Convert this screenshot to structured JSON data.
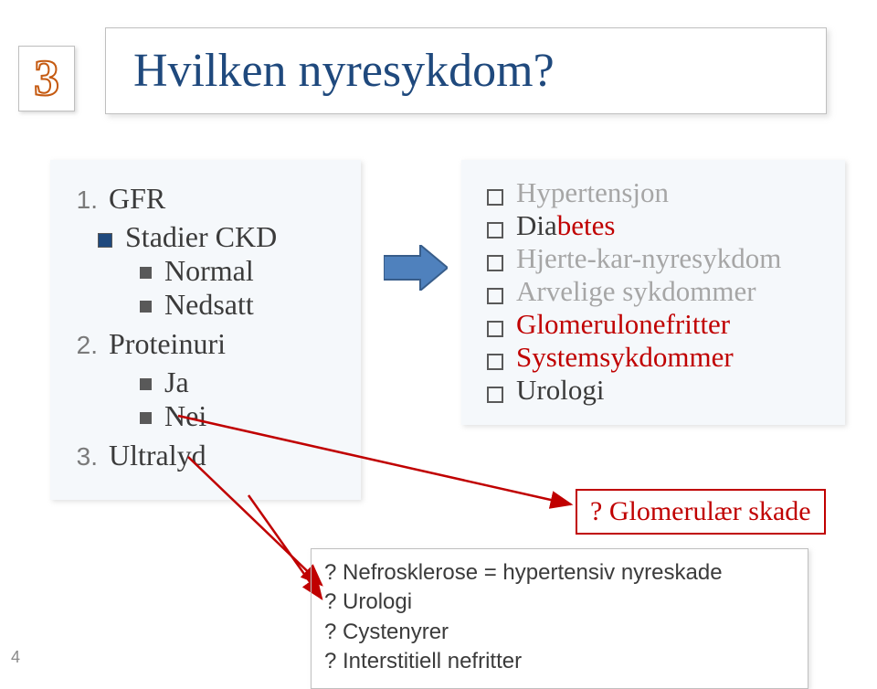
{
  "page_number_outline": "3",
  "title": "Hvilken nyresykdom?",
  "left": {
    "items": [
      {
        "n": "1.",
        "t": "GFR"
      },
      {
        "s1": "Stadier CKD"
      },
      {
        "s2": "Normal"
      },
      {
        "s2": "Nedsatt"
      },
      {
        "n": "2.",
        "t": "Proteinuri"
      },
      {
        "s2": "Ja"
      },
      {
        "s2": "Nei"
      },
      {
        "n": "3.",
        "t": "Ultralyd"
      }
    ]
  },
  "right": {
    "items": [
      {
        "t": "Hypertensjon",
        "cls": "gray"
      },
      {
        "html": "Dia<span class=\"red\">betes</span>"
      },
      {
        "t": "Hjerte-kar-nyresykdom",
        "cls": "gray"
      },
      {
        "t": "Arvelige sykdommer",
        "cls": "gray"
      },
      {
        "html": "<span class=\"red\">Glomerulonefritter</span>"
      },
      {
        "html": "<span class=\"red\">Systemsykdommer</span>"
      },
      {
        "t": "Urologi"
      }
    ]
  },
  "skade": "? Glomerulær skade",
  "bottom": [
    "? Nefrosklerose = hypertensiv nyreskade",
    "? Urologi",
    "? Cystenyrer",
    "? Interstitiell nefritter"
  ],
  "footer": "4",
  "colors": {
    "title": "#1f497d",
    "red": "#c00000",
    "gray": "#a6a6a6",
    "arrow_fill": "#4f81bd",
    "arrow_stroke": "#385d8a"
  }
}
